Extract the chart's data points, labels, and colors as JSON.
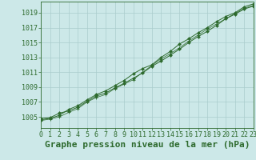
{
  "title": "Graphe pression niveau de la mer (hPa)",
  "bg_color": "#cce8e8",
  "grid_color": "#aacccc",
  "line_color": "#2d6a2d",
  "marker_color": "#2d6a2d",
  "x_values": [
    0,
    1,
    2,
    3,
    4,
    5,
    6,
    7,
    8,
    9,
    10,
    11,
    12,
    13,
    14,
    15,
    16,
    17,
    18,
    19,
    20,
    21,
    22,
    23
  ],
  "line1": [
    1004.8,
    1004.9,
    1005.5,
    1005.8,
    1006.3,
    1007.1,
    1007.8,
    1008.2,
    1008.9,
    1009.5,
    1010.2,
    1010.9,
    1011.8,
    1012.5,
    1013.3,
    1014.1,
    1015.0,
    1015.8,
    1016.5,
    1017.3,
    1018.2,
    1018.8,
    1019.5,
    1019.9
  ],
  "line2": [
    1004.6,
    1004.8,
    1005.2,
    1006.0,
    1006.5,
    1007.3,
    1008.0,
    1008.5,
    1009.2,
    1009.9,
    1010.8,
    1011.5,
    1012.0,
    1013.0,
    1013.8,
    1014.8,
    1015.5,
    1016.3,
    1017.0,
    1017.8,
    1018.5,
    1019.0,
    1019.8,
    1020.2
  ],
  "line3": [
    1004.5,
    1004.7,
    1005.0,
    1005.6,
    1006.1,
    1007.0,
    1007.6,
    1008.0,
    1008.8,
    1009.4,
    1010.0,
    1011.0,
    1011.9,
    1012.8,
    1013.5,
    1014.3,
    1015.2,
    1016.0,
    1016.8,
    1017.5,
    1018.2,
    1018.9,
    1019.6,
    1020.0
  ],
  "ylim": [
    1003.5,
    1020.5
  ],
  "yticks": [
    1005,
    1007,
    1009,
    1011,
    1013,
    1015,
    1017,
    1019
  ],
  "xlim": [
    0,
    23
  ],
  "title_fontsize": 8,
  "tick_fontsize": 6,
  "title_color": "#2d6a2d",
  "spine_color": "#2d6a2d"
}
